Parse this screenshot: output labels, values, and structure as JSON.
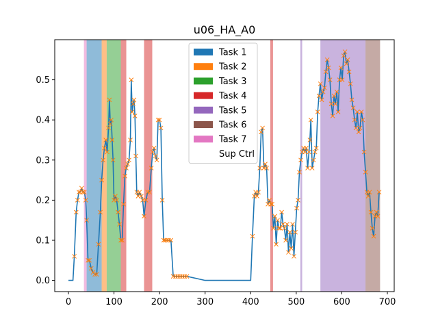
{
  "chart_data": {
    "type": "line",
    "title": "u06_HA_A0",
    "xlabel": "",
    "ylabel": "",
    "xlim": [
      -30,
      715
    ],
    "ylim": [
      -0.028,
      0.6
    ],
    "xticks": [
      0,
      100,
      200,
      300,
      400,
      500,
      600,
      700
    ],
    "yticks": [
      0.0,
      0.1,
      0.2,
      0.3,
      0.4,
      0.5
    ],
    "grid": false,
    "legend_position": "top-center",
    "legend": [
      {
        "label": "Task 1",
        "color": "#1f77b4"
      },
      {
        "label": "Task 2",
        "color": "#ff7f0e"
      },
      {
        "label": "Task 3",
        "color": "#2ca02c"
      },
      {
        "label": "Task 4",
        "color": "#d62728"
      },
      {
        "label": "Task 5",
        "color": "#9467bd"
      },
      {
        "label": "Task 6",
        "color": "#8c564b"
      },
      {
        "label": "Task 7",
        "color": "#e377c2"
      },
      {
        "label": "Sup Ctrl",
        "color": "#ffffff"
      }
    ],
    "spans": [
      {
        "task": 7,
        "x0": 34,
        "x1": 40,
        "color": "#e377c2"
      },
      {
        "task": 1,
        "x0": 40,
        "x1": 73,
        "color": "#1f77b4"
      },
      {
        "task": 2,
        "x0": 73,
        "x1": 84,
        "color": "#ff7f0e"
      },
      {
        "task": 3,
        "x0": 84,
        "x1": 115,
        "color": "#2ca02c"
      },
      {
        "task": 4,
        "x0": 115,
        "x1": 127,
        "color": "#d62728"
      },
      {
        "task": 4,
        "x0": 166,
        "x1": 184,
        "color": "#d62728"
      },
      {
        "task": 4,
        "x0": 443,
        "x1": 449,
        "color": "#d62728"
      },
      {
        "task": 5,
        "x0": 509,
        "x1": 513,
        "color": "#9467bd"
      },
      {
        "task": 5,
        "x0": 553,
        "x1": 652,
        "color": "#9467bd"
      },
      {
        "task": 6,
        "x0": 652,
        "x1": 684,
        "color": "#8c564b"
      }
    ],
    "series": [
      {
        "line_color": "#1f77b4",
        "marker_color": "#ff7f0e",
        "points": [
          [
            0,
            0.0
          ],
          [
            5,
            0.0
          ],
          [
            10,
            0.0
          ],
          [
            13,
            0.06
          ],
          [
            17,
            0.17
          ],
          [
            20,
            0.2
          ],
          [
            23,
            0.22
          ],
          [
            26,
            0.22
          ],
          [
            29,
            0.23
          ],
          [
            32,
            0.22
          ],
          [
            35,
            0.22
          ],
          [
            38,
            0.2
          ],
          [
            40,
            0.15
          ],
          [
            43,
            0.05
          ],
          [
            46,
            0.05
          ],
          [
            50,
            0.03
          ],
          [
            54,
            0.02
          ],
          [
            58,
            0.015
          ],
          [
            62,
            0.015
          ],
          [
            66,
            0.09
          ],
          [
            70,
            0.17
          ],
          [
            73,
            0.25
          ],
          [
            76,
            0.3
          ],
          [
            79,
            0.33
          ],
          [
            82,
            0.35
          ],
          [
            85,
            0.32
          ],
          [
            88,
            0.38
          ],
          [
            90,
            0.45
          ],
          [
            92,
            0.39
          ],
          [
            94,
            0.4
          ],
          [
            96,
            0.35
          ],
          [
            98,
            0.3
          ],
          [
            100,
            0.2
          ],
          [
            103,
            0.21
          ],
          [
            106,
            0.2
          ],
          [
            109,
            0.17
          ],
          [
            112,
            0.14
          ],
          [
            115,
            0.1
          ],
          [
            118,
            0.1
          ],
          [
            121,
            0.19
          ],
          [
            124,
            0.26
          ],
          [
            127,
            0.28
          ],
          [
            130,
            0.29
          ],
          [
            133,
            0.3
          ],
          [
            136,
            0.35
          ],
          [
            138,
            0.5
          ],
          [
            140,
            0.42
          ],
          [
            142,
            0.44
          ],
          [
            144,
            0.45
          ],
          [
            146,
            0.41
          ],
          [
            148,
            0.31
          ],
          [
            150,
            0.22
          ],
          [
            153,
            0.21
          ],
          [
            156,
            0.22
          ],
          [
            160,
            0.21
          ],
          [
            163,
            0.2
          ],
          [
            166,
            0.16
          ],
          [
            170,
            0.2
          ],
          [
            174,
            0.22
          ],
          [
            178,
            0.22
          ],
          [
            182,
            0.28
          ],
          [
            185,
            0.32
          ],
          [
            188,
            0.33
          ],
          [
            191,
            0.31
          ],
          [
            194,
            0.3
          ],
          [
            197,
            0.4
          ],
          [
            200,
            0.4
          ],
          [
            203,
            0.38
          ],
          [
            206,
            0.2
          ],
          [
            209,
            0.1
          ],
          [
            212,
            0.1
          ],
          [
            216,
            0.1
          ],
          [
            220,
            0.1
          ],
          [
            225,
            0.1
          ],
          [
            230,
            0.01
          ],
          [
            235,
            0.01
          ],
          [
            240,
            0.01
          ],
          [
            245,
            0.01
          ],
          [
            250,
            0.01
          ],
          [
            255,
            0.01
          ],
          [
            260,
            0.01
          ],
          [
            300,
            0.0
          ],
          [
            350,
            0.0
          ],
          [
            400,
            0.0
          ],
          [
            404,
            0.11
          ],
          [
            408,
            0.21
          ],
          [
            411,
            0.22
          ],
          [
            414,
            0.21
          ],
          [
            417,
            0.22
          ],
          [
            420,
            0.28
          ],
          [
            423,
            0.37
          ],
          [
            426,
            0.38
          ],
          [
            429,
            0.28
          ],
          [
            432,
            0.29
          ],
          [
            435,
            0.28
          ],
          [
            438,
            0.19
          ],
          [
            441,
            0.2
          ],
          [
            444,
            0.19
          ],
          [
            447,
            0.19
          ],
          [
            450,
            0.13
          ],
          [
            453,
            0.16
          ],
          [
            456,
            0.09
          ],
          [
            459,
            0.15
          ],
          [
            462,
            0.13
          ],
          [
            465,
            0.13
          ],
          [
            468,
            0.17
          ],
          [
            471,
            0.14
          ],
          [
            474,
            0.13
          ],
          [
            477,
            0.1
          ],
          [
            480,
            0.14
          ],
          [
            483,
            0.07
          ],
          [
            486,
            0.12
          ],
          [
            489,
            0.08
          ],
          [
            492,
            0.14
          ],
          [
            495,
            0.06
          ],
          [
            498,
            0.12
          ],
          [
            501,
            0.18
          ],
          [
            504,
            0.2
          ],
          [
            507,
            0.27
          ],
          [
            510,
            0.3
          ],
          [
            513,
            0.32
          ],
          [
            516,
            0.33
          ],
          [
            519,
            0.32
          ],
          [
            522,
            0.33
          ],
          [
            525,
            0.28
          ],
          [
            528,
            0.32
          ],
          [
            530,
            0.35
          ],
          [
            532,
            0.4
          ],
          [
            535,
            0.28
          ],
          [
            538,
            0.3
          ],
          [
            541,
            0.32
          ],
          [
            544,
            0.33
          ],
          [
            547,
            0.42
          ],
          [
            550,
            0.46
          ],
          [
            553,
            0.49
          ],
          [
            556,
            0.45
          ],
          [
            559,
            0.47
          ],
          [
            562,
            0.48
          ],
          [
            565,
            0.52
          ],
          [
            568,
            0.55
          ],
          [
            571,
            0.53
          ],
          [
            574,
            0.5
          ],
          [
            577,
            0.44
          ],
          [
            580,
            0.41
          ],
          [
            583,
            0.46
          ],
          [
            586,
            0.44
          ],
          [
            589,
            0.47
          ],
          [
            592,
            0.42
          ],
          [
            595,
            0.5
          ],
          [
            598,
            0.53
          ],
          [
            601,
            0.5
          ],
          [
            604,
            0.56
          ],
          [
            607,
            0.57
          ],
          [
            610,
            0.54
          ],
          [
            613,
            0.55
          ],
          [
            616,
            0.52
          ],
          [
            619,
            0.49
          ],
          [
            622,
            0.45
          ],
          [
            625,
            0.43
          ],
          [
            628,
            0.4
          ],
          [
            631,
            0.38
          ],
          [
            634,
            0.42
          ],
          [
            637,
            0.37
          ],
          [
            640,
            0.38
          ],
          [
            643,
            0.42
          ],
          [
            646,
            0.4
          ],
          [
            649,
            0.32
          ],
          [
            652,
            0.27
          ],
          [
            655,
            0.22
          ],
          [
            658,
            0.21
          ],
          [
            661,
            0.22
          ],
          [
            664,
            0.17
          ],
          [
            667,
            0.13
          ],
          [
            670,
            0.11
          ],
          [
            673,
            0.16
          ],
          [
            676,
            0.17
          ],
          [
            679,
            0.16
          ],
          [
            682,
            0.22
          ]
        ]
      }
    ]
  }
}
